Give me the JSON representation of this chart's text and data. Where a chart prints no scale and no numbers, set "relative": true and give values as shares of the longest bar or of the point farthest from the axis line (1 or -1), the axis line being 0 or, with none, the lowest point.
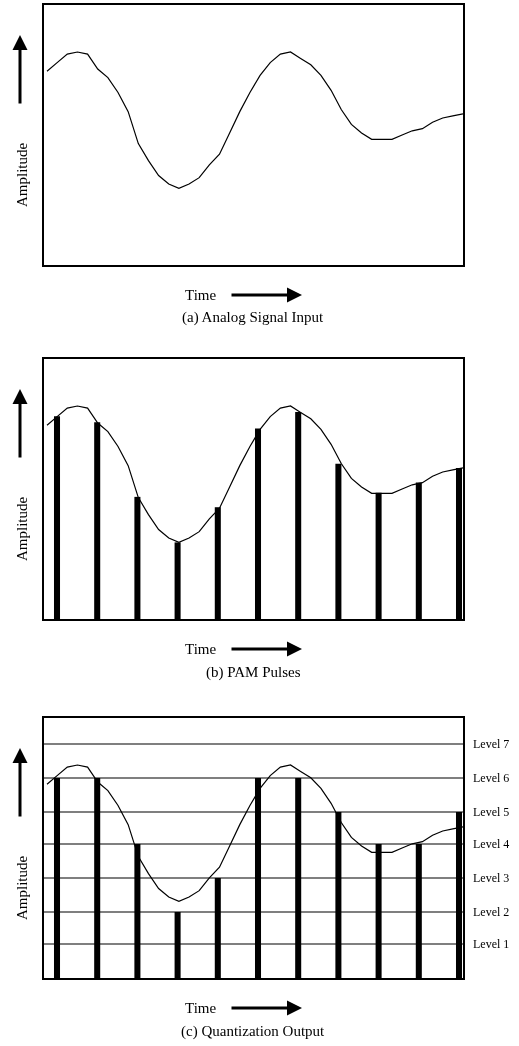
{
  "chart_data": [
    {
      "type": "line",
      "title": "(a) Analog Signal Input",
      "xlabel": "Time",
      "ylabel": "Amplitude",
      "relative": true,
      "categories": [
        null,
        null,
        null,
        null,
        null,
        null,
        null,
        null,
        null,
        null,
        null,
        null,
        null,
        null,
        null,
        null,
        null,
        null,
        null,
        null,
        null,
        null,
        null,
        null,
        null,
        null,
        null,
        null,
        null,
        null,
        null,
        null,
        null,
        null,
        null,
        null,
        null,
        null,
        null,
        null,
        null,
        null
      ],
      "series": [
        {
          "color": "#000000",
          "values": [
            0.91,
            0.95,
            0.99,
            1.0,
            0.99,
            0.92,
            0.88,
            0.81,
            0.72,
            0.57,
            0.49,
            0.42,
            0.38,
            0.36,
            0.38,
            0.41,
            0.47,
            0.52,
            0.62,
            0.72,
            0.81,
            0.89,
            0.95,
            0.99,
            1.0,
            0.97,
            0.94,
            0.89,
            0.82,
            0.73,
            0.66,
            0.62,
            0.59,
            0.59,
            0.59,
            0.61,
            0.63,
            0.64,
            0.67,
            0.69,
            0.7,
            0.71
          ]
        }
      ]
    },
    {
      "type": "bar",
      "title": "(b) PAM Pulses",
      "xlabel": "Time",
      "ylabel": "Amplitude",
      "relative": true,
      "categories": [
        null,
        null,
        null,
        null,
        null,
        null,
        null,
        null,
        null,
        null,
        null
      ],
      "series": [
        {
          "color": "#000000",
          "values": [
            0.98,
            0.95,
            0.59,
            0.37,
            0.54,
            0.92,
            1.0,
            0.75,
            0.61,
            0.66,
            0.73
          ]
        }
      ]
    },
    {
      "type": "line",
      "relative": true,
      "categories": [
        null,
        null,
        null,
        null,
        null,
        null,
        null,
        null,
        null,
        null,
        null,
        null,
        null,
        null,
        null,
        null,
        null,
        null,
        null,
        null,
        null,
        null,
        null,
        null,
        null,
        null,
        null,
        null,
        null,
        null,
        null,
        null,
        null,
        null,
        null,
        null,
        null,
        null,
        null,
        null,
        null,
        null
      ],
      "series": [
        {
          "color": "#000000",
          "values": [
            0.91,
            0.95,
            0.99,
            1.0,
            0.99,
            0.92,
            0.88,
            0.81,
            0.72,
            0.57,
            0.49,
            0.42,
            0.38,
            0.36,
            0.38,
            0.41,
            0.47,
            0.52,
            0.62,
            0.72,
            0.81,
            0.89,
            0.95,
            0.99,
            1.0,
            0.97,
            0.94,
            0.89,
            0.82,
            0.73,
            0.66,
            0.62,
            0.59,
            0.59,
            0.59,
            0.61,
            0.63,
            0.64,
            0.67,
            0.69,
            0.7,
            0.71
          ]
        }
      ]
    },
    {
      "type": "bar",
      "title": "(c) Quantization Output",
      "xlabel": "Time",
      "ylabel": "Amplitude",
      "relative": true,
      "categories": [
        null,
        null,
        null,
        null,
        null,
        null,
        null,
        null,
        null,
        null,
        null
      ],
      "series": [
        {
          "color": "#000000",
          "values": [
            1.0,
            1.0,
            0.67,
            0.33,
            0.5,
            1.0,
            1.0,
            0.83,
            0.67,
            0.67,
            0.83
          ]
        }
      ],
      "ref_lines": [
        {
          "axis": "y",
          "value": 1.17,
          "label": "Level 7",
          "color": "#000000"
        },
        {
          "axis": "y",
          "value": 1.0,
          "label": "Level 6",
          "color": "#000000"
        },
        {
          "axis": "y",
          "value": 0.83,
          "label": "Level 5",
          "color": "#000000"
        },
        {
          "axis": "y",
          "value": 0.67,
          "label": "Level 4",
          "color": "#000000"
        },
        {
          "axis": "y",
          "value": 0.5,
          "label": "Level 3",
          "color": "#000000"
        },
        {
          "axis": "y",
          "value": 0.33,
          "label": "Level 2",
          "color": "#000000"
        },
        {
          "axis": "y",
          "value": 0.17,
          "label": "Level 1",
          "color": "#000000"
        }
      ]
    },
    {
      "type": "line",
      "relative": true,
      "categories": [
        null,
        null,
        null,
        null,
        null,
        null,
        null,
        null,
        null,
        null,
        null,
        null,
        null,
        null,
        null,
        null,
        null,
        null,
        null,
        null,
        null,
        null,
        null,
        null,
        null,
        null,
        null,
        null,
        null,
        null,
        null,
        null,
        null,
        null,
        null,
        null,
        null,
        null,
        null,
        null,
        null,
        null
      ],
      "series": [
        {
          "color": "#000000",
          "values": [
            0.91,
            0.95,
            0.99,
            1.0,
            0.99,
            0.92,
            0.88,
            0.81,
            0.72,
            0.57,
            0.49,
            0.42,
            0.38,
            0.36,
            0.38,
            0.41,
            0.47,
            0.52,
            0.62,
            0.72,
            0.81,
            0.89,
            0.95,
            0.99,
            1.0,
            0.97,
            0.94,
            0.89,
            0.82,
            0.73,
            0.66,
            0.62,
            0.59,
            0.59,
            0.59,
            0.61,
            0.63,
            0.64,
            0.67,
            0.69,
            0.7,
            0.71
          ]
        }
      ]
    }
  ]
}
